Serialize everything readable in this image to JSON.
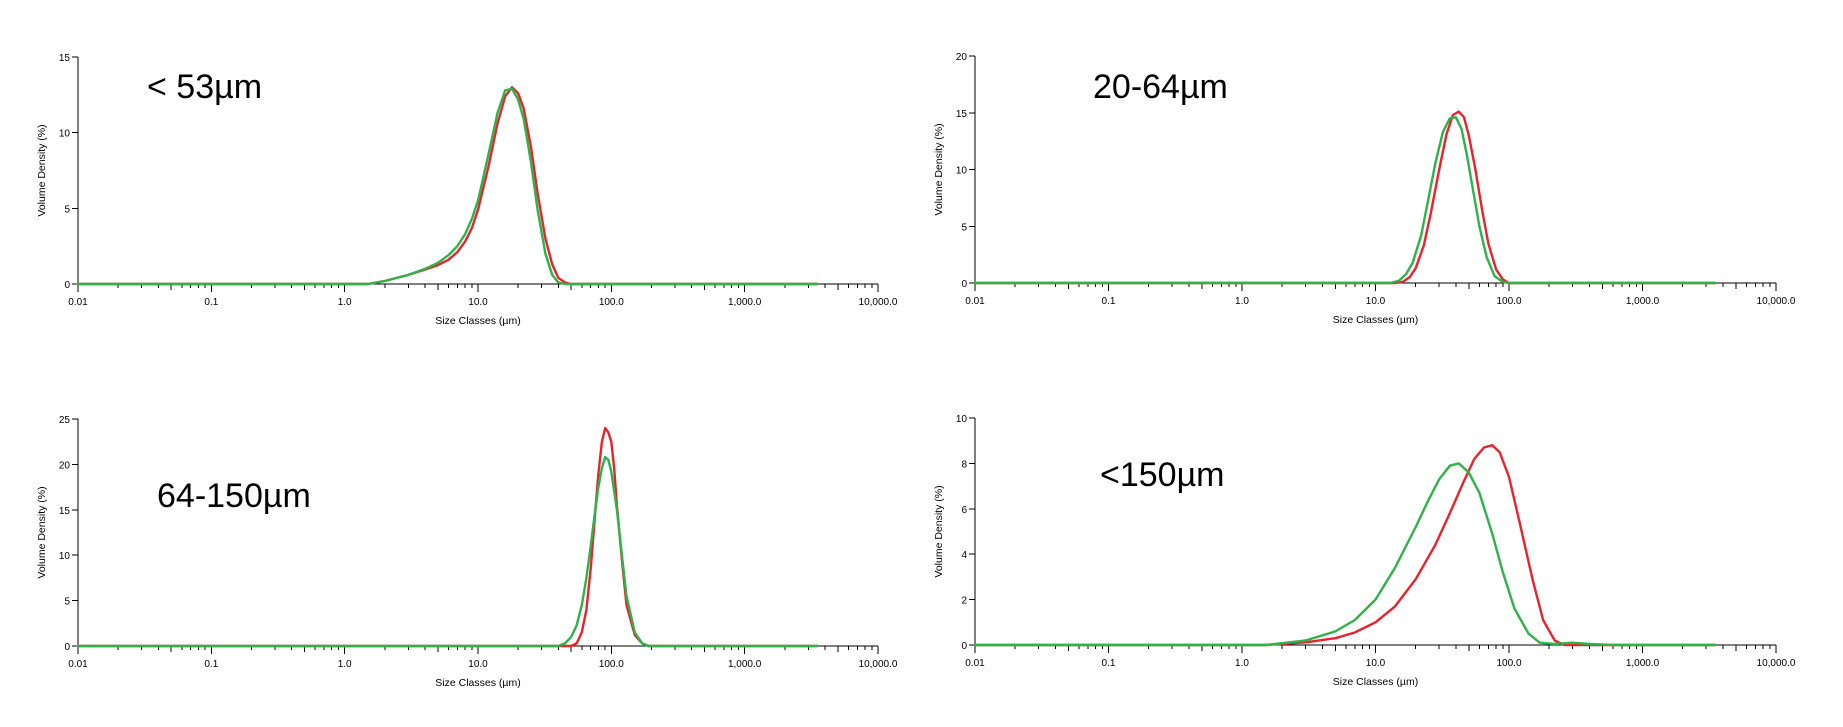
{
  "chart_data": [
    {
      "type": "line",
      "title": "< 53µm",
      "xlabel": "Size Classes (µm)",
      "ylabel": "Volume Density (%)",
      "xscale": "log",
      "xlim": [
        0.01,
        10000
      ],
      "ylim": [
        0,
        15
      ],
      "xticks": [
        "0.01",
        "0.1",
        "1.0",
        "10.0",
        "100.0",
        "1,000.0",
        "10,000.0"
      ],
      "yticks": [
        "0",
        "5",
        "10",
        "15"
      ],
      "grid": false,
      "series": [
        {
          "color": "#e8232b",
          "x": [
            0.01,
            1.5,
            2,
            3,
            4,
            5,
            6,
            7,
            8,
            9,
            10,
            12,
            14,
            16,
            18,
            20,
            22,
            25,
            28,
            32,
            36,
            40,
            45,
            50,
            3500
          ],
          "values": [
            0,
            0,
            0.2,
            0.6,
            0.95,
            1.25,
            1.6,
            2.1,
            2.8,
            3.7,
            4.9,
            7.8,
            10.6,
            12.4,
            13.0,
            12.6,
            11.6,
            9.0,
            6.0,
            3.0,
            1.3,
            0.4,
            0.1,
            0,
            0
          ]
        },
        {
          "color": "#2db34a",
          "x": [
            0.01,
            1.5,
            2,
            3,
            4,
            5,
            6,
            7,
            8,
            9,
            10,
            12,
            14,
            16,
            18,
            20,
            22,
            25,
            28,
            32,
            36,
            40,
            45,
            50,
            3500
          ],
          "values": [
            0,
            0,
            0.2,
            0.6,
            1.0,
            1.4,
            1.9,
            2.5,
            3.3,
            4.3,
            5.5,
            8.6,
            11.3,
            12.8,
            12.9,
            12.2,
            10.9,
            8.0,
            4.9,
            2.0,
            0.6,
            0.1,
            0,
            0,
            0
          ]
        }
      ]
    },
    {
      "type": "line",
      "title": "20-64µm",
      "xlabel": "Size Classes (µm)",
      "ylabel": "Volume Density (%)",
      "xscale": "log",
      "xlim": [
        0.01,
        10000
      ],
      "ylim": [
        0,
        20
      ],
      "xticks": [
        "0.01",
        "0.1",
        "1.0",
        "10.0",
        "100.0",
        "1,000.0",
        "10,000.0"
      ],
      "yticks": [
        "0",
        "5",
        "10",
        "15",
        "20"
      ],
      "grid": false,
      "series": [
        {
          "color": "#e8232b",
          "x": [
            0.01,
            14,
            16,
            18,
            20,
            23,
            26,
            30,
            34,
            38,
            42,
            46,
            50,
            56,
            63,
            70,
            80,
            90,
            100,
            110,
            3500
          ],
          "values": [
            0,
            0,
            0.1,
            0.5,
            1.3,
            3.3,
            6.2,
            10.0,
            13.1,
            14.8,
            15.1,
            14.6,
            13.0,
            10.0,
            6.4,
            3.5,
            1.2,
            0.3,
            0,
            0,
            0
          ]
        },
        {
          "color": "#2db34a",
          "x": [
            0.01,
            13,
            15,
            17,
            19,
            22,
            25,
            28,
            32,
            36,
            40,
            44,
            48,
            53,
            60,
            68,
            78,
            90,
            100,
            3500
          ],
          "values": [
            0,
            0,
            0.2,
            0.8,
            1.8,
            4.2,
            7.5,
            10.5,
            13.3,
            14.5,
            14.6,
            13.6,
            11.5,
            8.6,
            5.0,
            2.3,
            0.6,
            0.1,
            0,
            0
          ]
        }
      ]
    },
    {
      "type": "line",
      "title": "64-150µm",
      "xlabel": "Size Classes (µm)",
      "ylabel": "Volume Density (%)",
      "xscale": "log",
      "xlim": [
        0.01,
        10000
      ],
      "ylim": [
        0,
        25
      ],
      "xticks": [
        "0.01",
        "0.1",
        "1.0",
        "10.0",
        "100.0",
        "1,000.0",
        "10,000.0"
      ],
      "yticks": [
        "0",
        "5",
        "10",
        "15",
        "20",
        "25"
      ],
      "grid": false,
      "series": [
        {
          "color": "#e8232b",
          "x": [
            0.01,
            50,
            55,
            60,
            65,
            70,
            75,
            80,
            85,
            90,
            95,
            100,
            105,
            110,
            120,
            130,
            150,
            170,
            190,
            210,
            3500
          ],
          "values": [
            0,
            0,
            0.3,
            1.5,
            4.0,
            8.5,
            14.0,
            19.0,
            22.5,
            24.0,
            23.5,
            22.5,
            19.5,
            15.5,
            9.5,
            4.5,
            1.2,
            0.3,
            0,
            0,
            0
          ]
        },
        {
          "color": "#2db34a",
          "x": [
            0.01,
            40,
            45,
            50,
            55,
            60,
            65,
            70,
            75,
            80,
            85,
            90,
            95,
            100,
            110,
            120,
            130,
            150,
            170,
            190,
            3500
          ],
          "values": [
            0,
            0,
            0.3,
            1.0,
            2.3,
            4.5,
            7.5,
            11.0,
            14.5,
            17.5,
            19.6,
            20.8,
            20.5,
            19.2,
            15.0,
            10.0,
            5.5,
            1.5,
            0.3,
            0,
            0
          ]
        }
      ]
    },
    {
      "type": "line",
      "title": "<150µm",
      "xlabel": "Size Classes (µm)",
      "ylabel": "Volume Density (%)",
      "xscale": "log",
      "xlim": [
        0.01,
        10000
      ],
      "ylim": [
        0,
        10
      ],
      "xticks": [
        "0.01",
        "0.1",
        "1.0",
        "10.0",
        "100.0",
        "1,000.0",
        "10,000.0"
      ],
      "yticks": [
        "0",
        "2",
        "4",
        "6",
        "8",
        "10"
      ],
      "grid": false,
      "series": [
        {
          "color": "#e8232b",
          "x": [
            0.01,
            1.5,
            2,
            3,
            5,
            7,
            10,
            14,
            20,
            28,
            36,
            45,
            55,
            65,
            75,
            85,
            100,
            120,
            150,
            180,
            220,
            260,
            3500
          ],
          "values": [
            0,
            0,
            0.05,
            0.12,
            0.3,
            0.55,
            1.0,
            1.7,
            2.9,
            4.4,
            5.8,
            7.1,
            8.2,
            8.7,
            8.8,
            8.5,
            7.4,
            5.4,
            2.9,
            1.1,
            0.2,
            0,
            0
          ]
        },
        {
          "color": "#2db34a",
          "x": [
            0.01,
            1.5,
            2,
            3,
            5,
            7,
            10,
            14,
            20,
            25,
            30,
            36,
            42,
            50,
            60,
            75,
            90,
            110,
            140,
            170,
            220,
            300,
            400,
            600,
            3500
          ],
          "values": [
            0,
            0,
            0.08,
            0.2,
            0.6,
            1.1,
            2.0,
            3.4,
            5.2,
            6.4,
            7.3,
            7.9,
            8.0,
            7.6,
            6.7,
            4.9,
            3.2,
            1.6,
            0.5,
            0.1,
            0.05,
            0.1,
            0.05,
            0,
            0
          ]
        }
      ]
    }
  ]
}
